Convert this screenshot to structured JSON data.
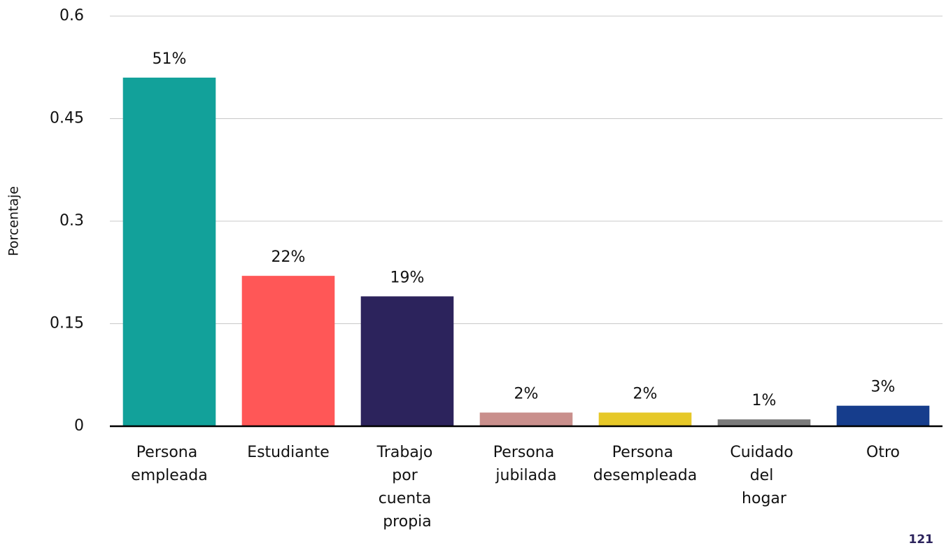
{
  "chart_data": {
    "type": "bar",
    "y_label": "Porcentaje",
    "categories": [
      "Persona empleada",
      "Estudiante",
      "Trabajo por cuenta propia",
      "Persona jubilada",
      "Persona desempleada",
      "Cuidado del hogar",
      "Otro"
    ],
    "values": [
      0.51,
      0.22,
      0.19,
      0.02,
      0.02,
      0.01,
      0.03
    ],
    "value_labels": [
      "51%",
      "22%",
      "19%",
      "2%",
      "2%",
      "1%",
      "3%"
    ],
    "colors": [
      "#12a19a",
      "#ff5757",
      "#2c235c",
      "#c98f8c",
      "#e6c828",
      "#7a7a7a",
      "#163d8c"
    ],
    "ylim": [
      0,
      0.6
    ],
    "yticks": [
      0,
      0.15,
      0.3,
      0.45,
      0.6
    ],
    "grid": true
  },
  "page_number": "121"
}
